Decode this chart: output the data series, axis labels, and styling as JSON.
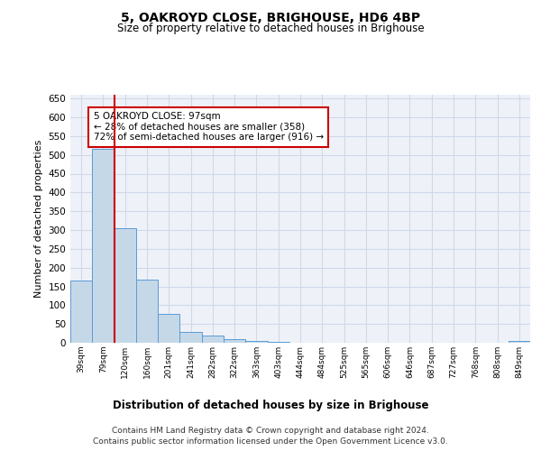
{
  "title": "5, OAKROYD CLOSE, BRIGHOUSE, HD6 4BP",
  "subtitle": "Size of property relative to detached houses in Brighouse",
  "xlabel": "Distribution of detached houses by size in Brighouse",
  "ylabel": "Number of detached properties",
  "categories": [
    "39sqm",
    "79sqm",
    "120sqm",
    "160sqm",
    "201sqm",
    "241sqm",
    "282sqm",
    "322sqm",
    "363sqm",
    "403sqm",
    "444sqm",
    "484sqm",
    "525sqm",
    "565sqm",
    "606sqm",
    "646sqm",
    "687sqm",
    "727sqm",
    "768sqm",
    "808sqm",
    "849sqm"
  ],
  "values": [
    165,
    515,
    304,
    169,
    77,
    30,
    20,
    10,
    5,
    3,
    1,
    0,
    0,
    0,
    0,
    0,
    0,
    0,
    0,
    0,
    5
  ],
  "bar_color": "#c5d8e8",
  "bar_edge_color": "#5b9bd5",
  "grid_color": "#d0d8e8",
  "background_color": "#eef2f8",
  "annotation_text": "5 OAKROYD CLOSE: 97sqm\n← 28% of detached houses are smaller (358)\n72% of semi-detached houses are larger (916) →",
  "annotation_box_color": "#ffffff",
  "annotation_box_edge_color": "#cc0000",
  "red_line_color": "#cc0000",
  "footer_line1": "Contains HM Land Registry data © Crown copyright and database right 2024.",
  "footer_line2": "Contains public sector information licensed under the Open Government Licence v3.0.",
  "ylim": [
    0,
    660
  ],
  "yticks": [
    0,
    50,
    100,
    150,
    200,
    250,
    300,
    350,
    400,
    450,
    500,
    550,
    600,
    650
  ]
}
